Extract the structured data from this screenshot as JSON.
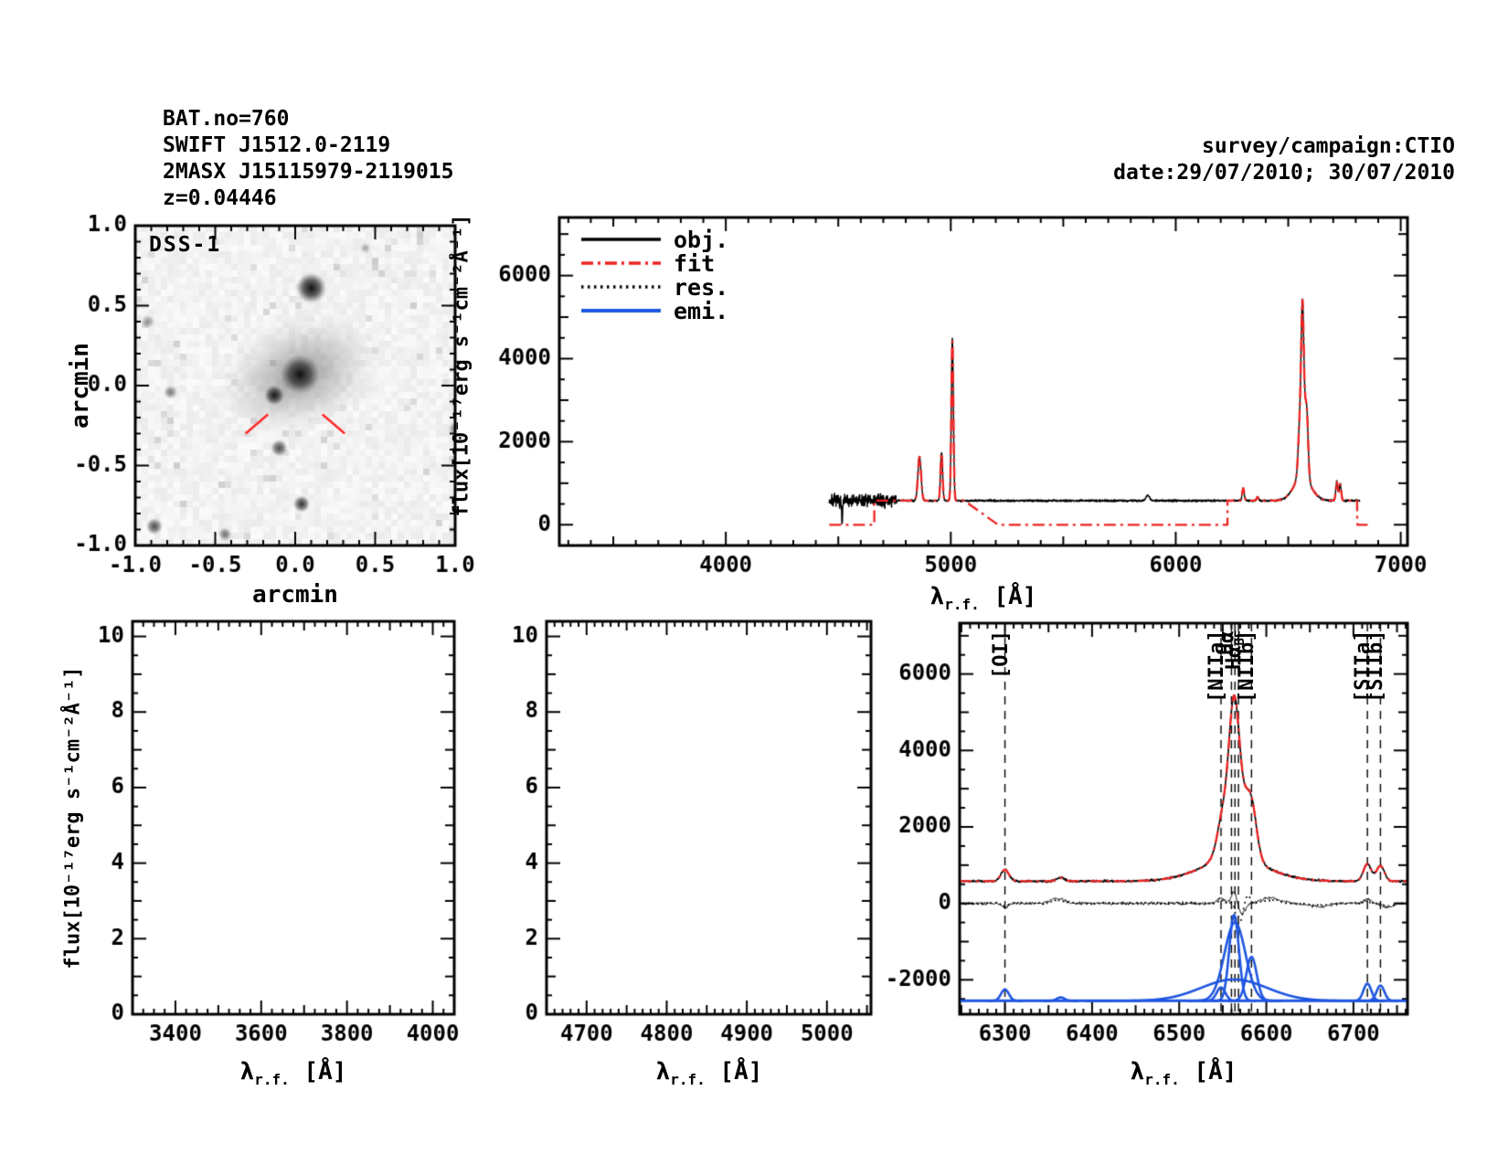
{
  "figure": {
    "background": "#ffffff",
    "header_left": [
      "BAT.no=760",
      "SWIFT J1512.0-2119",
      "2MASX J15115979-2119015",
      "z=0.04446"
    ],
    "header_right": [
      "survey/campaign:CTIO",
      "date:29/07/2010; 30/07/2010"
    ]
  },
  "labels": {
    "dss_tag": "DSS-1",
    "arcmin_x": "arcmin",
    "arcmin_y": "arcmin",
    "flux_axis": "flux[10⁻¹⁷erg s⁻¹cm⁻²Å⁻¹]",
    "lambda_symbol": "λ",
    "lambda_sub": "r.f.",
    "lambda_unit": " [Å]"
  },
  "legend": {
    "items": [
      {
        "label": "obj.",
        "style": "solid",
        "color": "#000000"
      },
      {
        "label": "fit",
        "style": "dashdot",
        "color": "#ee2222"
      },
      {
        "label": "res.",
        "style": "dotted",
        "color": "#000000"
      },
      {
        "label": "emi.",
        "style": "solid",
        "color": "#1d55e0"
      }
    ]
  },
  "chart_data": [
    {
      "id": "dss_image",
      "type": "heatmap",
      "title": "DSS-1",
      "xlabel": "arcmin",
      "ylabel": "arcmin",
      "xlim": [
        -1,
        1
      ],
      "ylim": [
        -1,
        1
      ],
      "xticks": [
        -1.0,
        -0.5,
        0.0,
        0.5,
        1.0
      ],
      "yticks": [
        -1.0,
        -0.5,
        0.0,
        0.5,
        1.0
      ],
      "tick_decimals": 1,
      "x_minor": 0.1,
      "x_medium": 0.5,
      "x_major": 0.5,
      "y_minor": 0.1,
      "y_medium": 0.5,
      "y_major": 0.5,
      "sources": [
        {
          "x": 0.03,
          "y": 0.07,
          "core_r": 12,
          "halo_r": 62,
          "intensity": 0.95
        },
        {
          "x": -0.13,
          "y": -0.06,
          "core_r": 6,
          "halo_r": 13,
          "intensity": 0.88
        },
        {
          "x": 0.1,
          "y": 0.61,
          "core_r": 9,
          "halo_r": 19,
          "intensity": 0.92
        },
        {
          "x": -0.1,
          "y": -0.39,
          "core_r": 5,
          "halo_r": 10,
          "intensity": 0.62
        },
        {
          "x": 0.04,
          "y": -0.74,
          "core_r": 5,
          "halo_r": 10,
          "intensity": 0.72
        },
        {
          "x": -0.88,
          "y": -0.88,
          "core_r": 5,
          "halo_r": 10,
          "intensity": 0.6
        },
        {
          "x": -0.44,
          "y": -0.93,
          "core_r": 4,
          "halo_r": 9,
          "intensity": 0.45
        },
        {
          "x": -0.78,
          "y": -0.04,
          "core_r": 4,
          "halo_r": 9,
          "intensity": 0.42
        },
        {
          "x": -0.92,
          "y": 0.4,
          "core_r": 4,
          "halo_r": 9,
          "intensity": 0.3
        },
        {
          "x": 0.44,
          "y": 0.86,
          "core_r": 3,
          "halo_r": 8,
          "intensity": 0.25
        },
        {
          "x": 1.0,
          "y": -0.27,
          "core_r": 4,
          "halo_r": 10,
          "intensity": 0.4
        }
      ],
      "pointer_markers": [
        {
          "x1": -0.31,
          "y1": -0.3,
          "x2": -0.17,
          "y2": -0.18
        },
        {
          "x1": 0.31,
          "y1": -0.3,
          "x2": 0.17,
          "y2": -0.18
        }
      ],
      "marker_color": "#ff2a2a"
    },
    {
      "id": "spectrum_full",
      "type": "line",
      "xlim": [
        3260,
        7030
      ],
      "ylim": [
        -500,
        7400
      ],
      "xticks": [
        4000,
        5000,
        6000,
        7000
      ],
      "yticks": [
        0,
        2000,
        4000,
        6000
      ],
      "x_minor": 100,
      "x_medium": 500,
      "x_major": 1000,
      "y_minor": 500,
      "y_medium": 1000,
      "y_major": 2000,
      "continuum": 580,
      "data_range": [
        4460,
        6818
      ],
      "noisy_until": 4760,
      "noise_sigma_noisy": 75,
      "noise_sigma": 12,
      "absorption_spike": {
        "center": 4517,
        "sigma": 2.5,
        "depth": 540
      },
      "fit_regions": [
        [
          4660,
          5060
        ],
        [
          6230,
          6807
        ]
      ],
      "fit_ramp": [
        5060,
        5210
      ],
      "fit_zero_end": 6860,
      "series": [
        "obj.",
        "fit"
      ],
      "emission_lines": [
        {
          "name": "Hβ",
          "center": 4861,
          "sigma": 7,
          "amplitude": 1060
        },
        {
          "name": "[OIII]4959",
          "center": 4959,
          "sigma": 4.5,
          "amplitude": 1170
        },
        {
          "name": "[OIII]5007",
          "center": 5007,
          "sigma": 4.5,
          "amplitude": 3920
        },
        {
          "name": "HeI5876",
          "center": 5876,
          "sigma": 8,
          "amplitude": 130
        },
        {
          "name": "[OI]6300",
          "center": 6300,
          "sigma": 4.5,
          "amplitude": 300
        },
        {
          "name": "[OI]6364",
          "center": 6364,
          "sigma": 4.5,
          "amplitude": 90
        },
        {
          "name": "[NIIa]6548",
          "center": 6548,
          "sigma": 5,
          "amplitude": 350
        },
        {
          "name": "Hα narrow",
          "center": 6563,
          "sigma": 5.5,
          "amplitude": 2250
        },
        {
          "name": "Hα interm",
          "center": 6564,
          "sigma": 12,
          "amplitude": 2050
        },
        {
          "name": "Hα broad BF",
          "center": 6563,
          "sigma": 38,
          "amplitude": 560
        },
        {
          "name": "[NIIb]6583",
          "center": 6583,
          "sigma": 6,
          "amplitude": 1150
        },
        {
          "name": "[SIIa]6716",
          "center": 6716,
          "sigma": 4.5,
          "amplitude": 450
        },
        {
          "name": "[SIIb]6731",
          "center": 6731,
          "sigma": 4.5,
          "amplitude": 400
        }
      ]
    },
    {
      "id": "panel_3300_4050",
      "type": "line",
      "xlim": [
        3300,
        4050
      ],
      "ylim": [
        0,
        10.4
      ],
      "xticks": [
        3400,
        3600,
        3800,
        4000
      ],
      "yticks": [
        0,
        2,
        4,
        6,
        8,
        10
      ],
      "x_minor": 25,
      "x_medium": 100,
      "x_major": 200,
      "y_minor": 0.5,
      "y_medium": 1,
      "y_major": 2,
      "series": []
    },
    {
      "id": "panel_4650_5050",
      "type": "line",
      "xlim": [
        4650,
        5055
      ],
      "ylim": [
        0,
        10.4
      ],
      "xticks": [
        4700,
        4800,
        4900,
        5000
      ],
      "yticks": [
        0,
        2,
        4,
        6,
        8,
        10
      ],
      "x_minor": 10,
      "x_medium": 50,
      "x_major": 100,
      "y_minor": 0.5,
      "y_medium": 1,
      "y_major": 2,
      "series": []
    },
    {
      "id": "halpha_zoom",
      "type": "line",
      "xlim": [
        6248,
        6762
      ],
      "ylim": [
        -2900,
        7330
      ],
      "xticks": [
        6300,
        6400,
        6500,
        6600,
        6700
      ],
      "yticks": [
        -2000,
        0,
        2000,
        4000,
        6000
      ],
      "x_minor": 10,
      "x_medium": 50,
      "x_major": 100,
      "y_minor": 500,
      "y_medium": 1000,
      "y_major": 2000,
      "continuum": 580,
      "noise_sigma": 13,
      "emission_baseline": -2550,
      "markers": [
        {
          "label": "[OI]",
          "sub": "",
          "x": 6300
        },
        {
          "label": "[NIIa]",
          "sub": "",
          "x": 6548
        },
        {
          "label": "Hα",
          "sub": "",
          "x": 6560
        },
        {
          "label": "Hα",
          "sub": "BF",
          "x": 6568
        },
        {
          "label": "[NIIb]",
          "sub": "",
          "x": 6583
        },
        {
          "label": "[SIIa]",
          "sub": "",
          "x": 6716
        },
        {
          "label": "[SIIb]",
          "sub": "",
          "x": 6731
        }
      ],
      "extra_dashed_lines": [
        6564
      ],
      "emission_lines": [
        {
          "name": "[OI]6300",
          "center": 6300,
          "sigma": 4.5,
          "amplitude": 300
        },
        {
          "name": "[OI]6364",
          "center": 6364,
          "sigma": 4.5,
          "amplitude": 90
        },
        {
          "name": "[NIIa]6548",
          "center": 6548,
          "sigma": 5,
          "amplitude": 350
        },
        {
          "name": "Hα narrow",
          "center": 6563,
          "sigma": 5.5,
          "amplitude": 2250
        },
        {
          "name": "Hα interm",
          "center": 6564,
          "sigma": 12,
          "amplitude": 2050
        },
        {
          "name": "Hα broad BF",
          "center": 6563,
          "sigma": 38,
          "amplitude": 560
        },
        {
          "name": "[NIIb]6583",
          "center": 6583,
          "sigma": 6,
          "amplitude": 1150
        },
        {
          "name": "[SIIa]6716",
          "center": 6716,
          "sigma": 4.5,
          "amplitude": 450
        },
        {
          "name": "[SIIb]6731",
          "center": 6731,
          "sigma": 4.5,
          "amplitude": 400
        }
      ],
      "residual": {
        "noise_sigma": 20,
        "features": [
          {
            "center": 6300,
            "sigma": 4,
            "amplitude": -90
          },
          {
            "center": 6360,
            "sigma": 8,
            "amplitude": 130
          },
          {
            "center": 6548,
            "sigma": 4,
            "amplitude": 140
          },
          {
            "center": 6563,
            "sigma": 3,
            "amplitude": 320
          },
          {
            "center": 6572,
            "sigma": 4,
            "amplitude": -260
          },
          {
            "center": 6605,
            "sigma": 10,
            "amplitude": 150
          },
          {
            "center": 6660,
            "sigma": 12,
            "amplitude": -90
          },
          {
            "center": 6716,
            "sigma": 4,
            "amplitude": 110
          },
          {
            "center": 6740,
            "sigma": 6,
            "amplitude": -100
          }
        ],
        "dotted_extra": [
          {
            "center": 6567,
            "sigma": 4,
            "amplitude": -520
          },
          {
            "center": 6578,
            "sigma": 3,
            "amplitude": 260
          }
        ]
      }
    }
  ]
}
